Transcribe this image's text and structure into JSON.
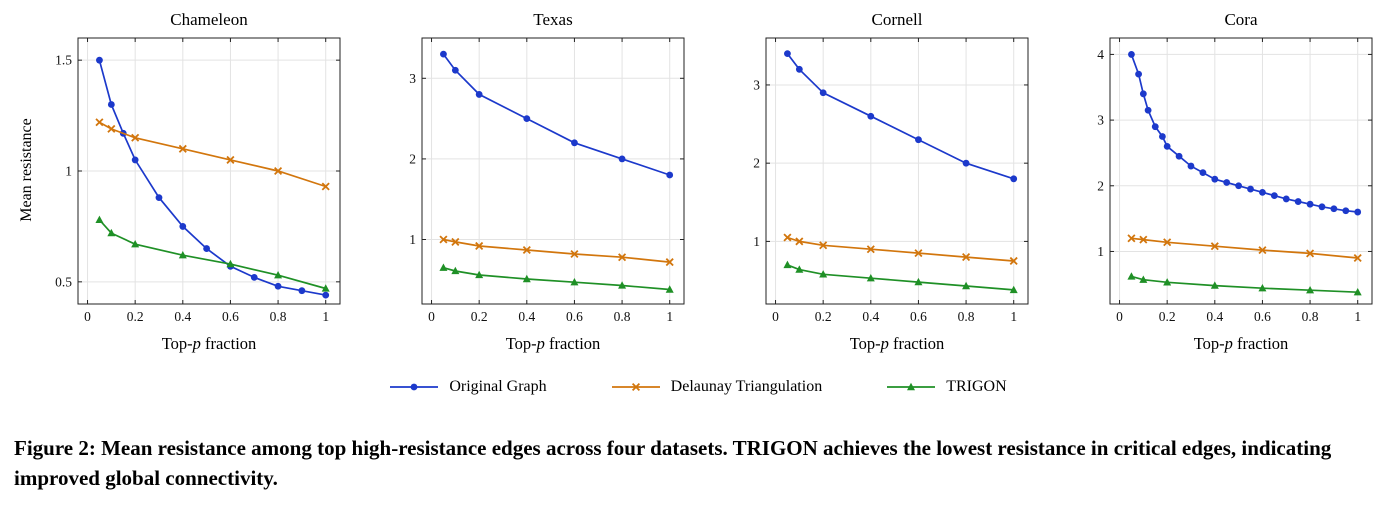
{
  "figure": {
    "caption": "Figure 2: Mean resistance among top high-resistance edges across four datasets. TRIGON achieves the lowest resistance in critical edges, indicating improved global connectivity."
  },
  "labels": {
    "ylabel": "Mean resistance",
    "xlabel_prefix": "Top-",
    "xlabel_italic": "p",
    "xlabel_suffix": " fraction"
  },
  "legend": {
    "items": [
      {
        "label": "Original Graph",
        "color": "#1c39cb",
        "marker": "circle"
      },
      {
        "label": "Delaunay Triangulation",
        "color": "#d2760d",
        "marker": "x"
      },
      {
        "label": "TRIGON",
        "color": "#1f9026",
        "marker": "triangle"
      }
    ]
  },
  "chart_data": [
    {
      "type": "line",
      "title": "Chameleon",
      "xlabel": "Top-p fraction",
      "ylabel": "Mean resistance",
      "xlim": [
        -0.04,
        1.06
      ],
      "ylim": [
        0.4,
        1.6
      ],
      "xticks": [
        0,
        0.2,
        0.4,
        0.6,
        0.8,
        1
      ],
      "yticks": [
        0.5,
        1,
        1.5
      ],
      "grid": true,
      "series": [
        {
          "name": "Original Graph",
          "color": "#1c39cb",
          "marker": "circle",
          "x": [
            0.05,
            0.1,
            0.15,
            0.2,
            0.3,
            0.4,
            0.5,
            0.6,
            0.7,
            0.8,
            0.9,
            1.0
          ],
          "y": [
            1.5,
            1.3,
            1.17,
            1.05,
            0.88,
            0.75,
            0.65,
            0.57,
            0.52,
            0.48,
            0.46,
            0.44
          ]
        },
        {
          "name": "Delaunay Triangulation",
          "color": "#d2760d",
          "marker": "x",
          "x": [
            0.05,
            0.1,
            0.2,
            0.4,
            0.6,
            0.8,
            1.0
          ],
          "y": [
            1.22,
            1.19,
            1.15,
            1.1,
            1.05,
            1.0,
            0.93
          ]
        },
        {
          "name": "TRIGON",
          "color": "#1f9026",
          "marker": "triangle",
          "x": [
            0.05,
            0.1,
            0.2,
            0.4,
            0.6,
            0.8,
            1.0
          ],
          "y": [
            0.78,
            0.72,
            0.67,
            0.62,
            0.58,
            0.53,
            0.47
          ]
        }
      ]
    },
    {
      "type": "line",
      "title": "Texas",
      "xlabel": "Top-p fraction",
      "xlim": [
        -0.04,
        1.06
      ],
      "ylim": [
        0.2,
        3.5
      ],
      "xticks": [
        0,
        0.2,
        0.4,
        0.6,
        0.8,
        1
      ],
      "yticks": [
        1,
        2,
        3
      ],
      "grid": true,
      "series": [
        {
          "name": "Original Graph",
          "color": "#1c39cb",
          "marker": "circle",
          "x": [
            0.05,
            0.1,
            0.2,
            0.4,
            0.6,
            0.8,
            1.0
          ],
          "y": [
            3.3,
            3.1,
            2.8,
            2.5,
            2.2,
            2.0,
            1.8
          ]
        },
        {
          "name": "Delaunay Triangulation",
          "color": "#d2760d",
          "marker": "x",
          "x": [
            0.05,
            0.1,
            0.2,
            0.4,
            0.6,
            0.8,
            1.0
          ],
          "y": [
            1.0,
            0.97,
            0.92,
            0.87,
            0.82,
            0.78,
            0.72
          ]
        },
        {
          "name": "TRIGON",
          "color": "#1f9026",
          "marker": "triangle",
          "x": [
            0.05,
            0.1,
            0.2,
            0.4,
            0.6,
            0.8,
            1.0
          ],
          "y": [
            0.65,
            0.61,
            0.56,
            0.51,
            0.47,
            0.43,
            0.38
          ]
        }
      ]
    },
    {
      "type": "line",
      "title": "Cornell",
      "xlabel": "Top-p fraction",
      "xlim": [
        -0.04,
        1.06
      ],
      "ylim": [
        0.2,
        3.6
      ],
      "xticks": [
        0,
        0.2,
        0.4,
        0.6,
        0.8,
        1
      ],
      "yticks": [
        1,
        2,
        3
      ],
      "grid": true,
      "series": [
        {
          "name": "Original Graph",
          "color": "#1c39cb",
          "marker": "circle",
          "x": [
            0.05,
            0.1,
            0.2,
            0.4,
            0.6,
            0.8,
            1.0
          ],
          "y": [
            3.4,
            3.2,
            2.9,
            2.6,
            2.3,
            2.0,
            1.8
          ]
        },
        {
          "name": "Delaunay Triangulation",
          "color": "#d2760d",
          "marker": "x",
          "x": [
            0.05,
            0.1,
            0.2,
            0.4,
            0.6,
            0.8,
            1.0
          ],
          "y": [
            1.05,
            1.0,
            0.95,
            0.9,
            0.85,
            0.8,
            0.75
          ]
        },
        {
          "name": "TRIGON",
          "color": "#1f9026",
          "marker": "triangle",
          "x": [
            0.05,
            0.1,
            0.2,
            0.4,
            0.6,
            0.8,
            1.0
          ],
          "y": [
            0.7,
            0.64,
            0.58,
            0.53,
            0.48,
            0.43,
            0.38
          ]
        }
      ]
    },
    {
      "type": "line",
      "title": "Cora",
      "xlabel": "Top-p fraction",
      "xlim": [
        -0.04,
        1.06
      ],
      "ylim": [
        0.2,
        4.25
      ],
      "xticks": [
        0,
        0.2,
        0.4,
        0.6,
        0.8,
        1
      ],
      "yticks": [
        1,
        2,
        3,
        4
      ],
      "grid": true,
      "series": [
        {
          "name": "Original Graph",
          "color": "#1c39cb",
          "marker": "circle",
          "x": [
            0.05,
            0.08,
            0.1,
            0.12,
            0.15,
            0.18,
            0.2,
            0.25,
            0.3,
            0.35,
            0.4,
            0.45,
            0.5,
            0.55,
            0.6,
            0.65,
            0.7,
            0.75,
            0.8,
            0.85,
            0.9,
            0.95,
            1.0
          ],
          "y": [
            4.0,
            3.7,
            3.4,
            3.15,
            2.9,
            2.75,
            2.6,
            2.45,
            2.3,
            2.2,
            2.1,
            2.05,
            2.0,
            1.95,
            1.9,
            1.85,
            1.8,
            1.76,
            1.72,
            1.68,
            1.65,
            1.62,
            1.6
          ]
        },
        {
          "name": "Delaunay Triangulation",
          "color": "#d2760d",
          "marker": "x",
          "x": [
            0.05,
            0.1,
            0.2,
            0.4,
            0.6,
            0.8,
            1.0
          ],
          "y": [
            1.2,
            1.18,
            1.14,
            1.08,
            1.02,
            0.97,
            0.9
          ]
        },
        {
          "name": "TRIGON",
          "color": "#1f9026",
          "marker": "triangle",
          "x": [
            0.05,
            0.1,
            0.2,
            0.4,
            0.6,
            0.8,
            1.0
          ],
          "y": [
            0.62,
            0.57,
            0.53,
            0.48,
            0.44,
            0.41,
            0.38
          ]
        }
      ]
    }
  ]
}
